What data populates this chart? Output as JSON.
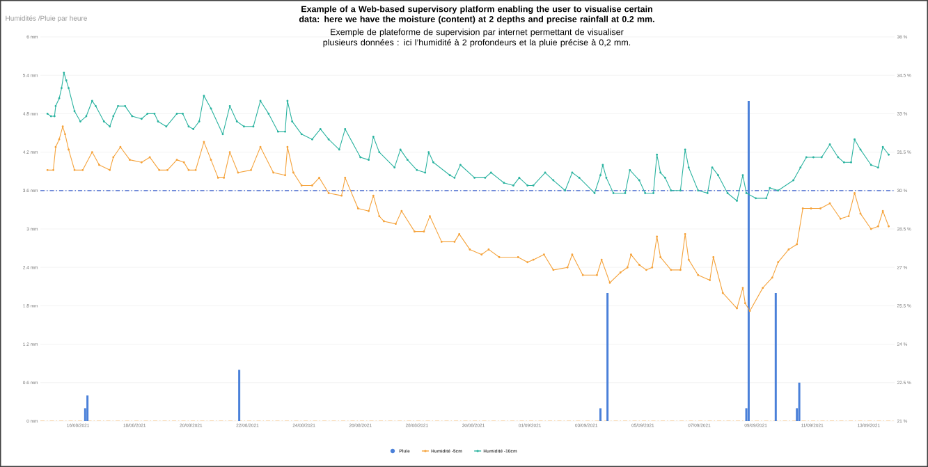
{
  "chart_data": {
    "type": "line",
    "title": "Humidités /Pluie par heure",
    "annotations": [
      "Example of a Web-based supervisory platform enabling the user to visualise certain data: here we have the moisture (content) at 2 depths and precise rainfall at 0.2 mm.",
      "Exemple de plateforme de supervision par internet permettant de visualiser plusieurs données : ici l’humidité à 2 profondeurs et la pluie précise à 0,2 mm."
    ],
    "xlim": [
      "2021-08-14T16:00",
      "2021-09-13T22:00"
    ],
    "xticks": [
      {
        "value": "2021-08-16",
        "label": "16/08/2021"
      },
      {
        "value": "2021-08-18",
        "label": "18/08/2021"
      },
      {
        "value": "2021-08-20",
        "label": "20/08/2021"
      },
      {
        "value": "2021-08-22",
        "label": "22/08/2021"
      },
      {
        "value": "2021-08-24",
        "label": "24/08/2021"
      },
      {
        "value": "2021-08-26",
        "label": "26/08/2021"
      },
      {
        "value": "2021-08-28",
        "label": "28/08/2021"
      },
      {
        "value": "2021-08-30",
        "label": "30/08/2021"
      },
      {
        "value": "2021-09-01",
        "label": "01/09/2021"
      },
      {
        "value": "2021-09-03",
        "label": "03/09/2021"
      },
      {
        "value": "2021-09-05",
        "label": "05/09/2021"
      },
      {
        "value": "2021-09-07",
        "label": "07/09/2021"
      },
      {
        "value": "2021-09-09",
        "label": "09/09/2021"
      },
      {
        "value": "2021-09-11",
        "label": "11/09/2021"
      },
      {
        "value": "2021-09-13",
        "label": "13/09/2021"
      }
    ],
    "ylim": [
      0,
      6
    ],
    "yticks": [
      {
        "value": 0,
        "label": "0 mm"
      },
      {
        "value": 0.6,
        "label": "0.6 mm"
      },
      {
        "value": 1.2,
        "label": "1.2 mm"
      },
      {
        "value": 1.8,
        "label": "1.8 mm"
      },
      {
        "value": 2.4,
        "label": "2.4 mm"
      },
      {
        "value": 3,
        "label": "3 mm"
      },
      {
        "value": 3.6,
        "label": "3.6 mm"
      },
      {
        "value": 4.2,
        "label": "4.2 mm"
      },
      {
        "value": 4.8,
        "label": "4.8 mm"
      },
      {
        "value": 5.4,
        "label": "5.4 mm"
      },
      {
        "value": 6,
        "label": "6 mm"
      }
    ],
    "y2lim": [
      21,
      36
    ],
    "y2ticks": [
      {
        "value": 21,
        "label": "21 %"
      },
      {
        "value": 22.5,
        "label": "22.5 %"
      },
      {
        "value": 24,
        "label": "24 %"
      },
      {
        "value": 25.5,
        "label": "25.5 %"
      },
      {
        "value": 27,
        "label": "27 %"
      },
      {
        "value": 28.5,
        "label": "28.5 %"
      },
      {
        "value": 30,
        "label": "30 %"
      },
      {
        "value": 31.5,
        "label": "31.5 %"
      },
      {
        "value": 33,
        "label": "33 %"
      },
      {
        "value": 34.5,
        "label": "34.5 %"
      },
      {
        "value": 36,
        "label": "36 %"
      }
    ],
    "grid": "y",
    "legend": "bottom",
    "ref_lines": [
      {
        "axis": "y",
        "value": 3.6,
        "color": "#3a5fcd",
        "line_style": "dashdot"
      },
      {
        "axis": "y",
        "value": 0,
        "color": "#f5a33c",
        "line_style": "dashdot"
      }
    ],
    "series": [
      {
        "name": "Pluie",
        "type": "bar",
        "axis": "y",
        "color": "#4a80d9",
        "x": [
          "2021-08-16T06:00",
          "2021-08-16T08:00",
          "2021-08-21T17:00",
          "2021-09-03T12:00",
          "2021-09-03T18:00",
          "2021-09-08T16:00",
          "2021-09-08T18:00",
          "2021-09-09T17:00",
          "2021-09-10T11:00",
          "2021-09-10T13:00"
        ],
        "values": [
          0.2,
          0.4,
          0.8,
          0.2,
          2.0,
          0.2,
          5.0,
          2.0,
          0.2,
          0.6
        ]
      },
      {
        "name": "Humidité -5cm",
        "axis": "y2",
        "color": "#f5a33c",
        "marker": "circle",
        "x": [
          "2021-08-14T22:00",
          "2021-08-15T03:00",
          "2021-08-15T05:00",
          "2021-08-15T08:00",
          "2021-08-15T11:00",
          "2021-08-15T13:00",
          "2021-08-15T16:00",
          "2021-08-15T21:00",
          "2021-08-16T04:00",
          "2021-08-16T12:00",
          "2021-08-16T18:00",
          "2021-08-17T03:00",
          "2021-08-17T06:00",
          "2021-08-17T12:00",
          "2021-08-17T20:00",
          "2021-08-18T06:00",
          "2021-08-18T13:00",
          "2021-08-18T21:00",
          "2021-08-19T04:00",
          "2021-08-19T12:00",
          "2021-08-19T18:00",
          "2021-08-19T22:00",
          "2021-08-20T04:00",
          "2021-08-20T11:00",
          "2021-08-20T17:00",
          "2021-08-20T23:00",
          "2021-08-21T04:00",
          "2021-08-21T09:00",
          "2021-08-21T16:00",
          "2021-08-22T03:00",
          "2021-08-22T11:00",
          "2021-08-22T22:00",
          "2021-08-23T08:00",
          "2021-08-23T10:00",
          "2021-08-23T15:00",
          "2021-08-23T22:00",
          "2021-08-24T07:00",
          "2021-08-24T13:00",
          "2021-08-24T21:00",
          "2021-08-25T08:00",
          "2021-08-25T11:00",
          "2021-08-25T22:00",
          "2021-08-26T07:00",
          "2021-08-26T11:00",
          "2021-08-26T16:00",
          "2021-08-26T20:00",
          "2021-08-27T06:00",
          "2021-08-27T11:00",
          "2021-08-27T22:00",
          "2021-08-28T06:00",
          "2021-08-28T11:00",
          "2021-08-28T21:00",
          "2021-08-29T08:00",
          "2021-08-29T12:00",
          "2021-08-29T21:00",
          "2021-08-30T07:00",
          "2021-08-30T13:00",
          "2021-08-30T22:00",
          "2021-08-31T14:00",
          "2021-08-31T22:00",
          "2021-09-01T03:00",
          "2021-09-01T12:00",
          "2021-09-01T20:00",
          "2021-09-02T08:00",
          "2021-09-02T12:00",
          "2021-09-02T21:00",
          "2021-09-03T09:00",
          "2021-09-03T13:00",
          "2021-09-03T20:00",
          "2021-09-04T05:00",
          "2021-09-04T11:00",
          "2021-09-04T14:00",
          "2021-09-04T21:00",
          "2021-09-05T03:00",
          "2021-09-05T08:00",
          "2021-09-05T12:00",
          "2021-09-05T15:00",
          "2021-09-06T00:00",
          "2021-09-06T08:00",
          "2021-09-06T12:00",
          "2021-09-06T15:00",
          "2021-09-06T23:00",
          "2021-09-07T09:00",
          "2021-09-07T12:00",
          "2021-09-07T20:00",
          "2021-09-08T08:00",
          "2021-09-08T13:00",
          "2021-09-08T15:00",
          "2021-09-08T19:00",
          "2021-09-09T06:00",
          "2021-09-09T14:00",
          "2021-09-09T19:00",
          "2021-09-10T04:00",
          "2021-09-10T11:00",
          "2021-09-10T16:00",
          "2021-09-10T23:00",
          "2021-09-11T07:00",
          "2021-09-11T15:00",
          "2021-09-12T00:00",
          "2021-09-12T07:00",
          "2021-09-12T12:00",
          "2021-09-12T17:00",
          "2021-09-13T02:00",
          "2021-09-13T08:00",
          "2021-09-13T12:00",
          "2021-09-13T17:00"
        ],
        "values": [
          30.8,
          30.8,
          31.7,
          32.0,
          32.5,
          32.2,
          31.6,
          30.8,
          30.8,
          31.5,
          31.0,
          30.8,
          31.3,
          31.7,
          31.2,
          31.1,
          31.3,
          30.8,
          30.8,
          31.2,
          31.1,
          30.8,
          30.8,
          31.9,
          31.2,
          30.5,
          30.5,
          31.5,
          30.7,
          30.8,
          31.7,
          30.7,
          30.6,
          31.7,
          30.7,
          30.2,
          30.2,
          30.5,
          29.9,
          29.8,
          30.5,
          29.3,
          29.2,
          29.8,
          29.0,
          28.8,
          28.7,
          29.2,
          28.4,
          28.4,
          29.0,
          28.0,
          28.0,
          28.3,
          27.7,
          27.5,
          27.7,
          27.4,
          27.4,
          27.2,
          27.3,
          27.5,
          26.9,
          27.0,
          27.5,
          26.7,
          26.7,
          27.3,
          26.4,
          26.8,
          27.0,
          27.5,
          27.1,
          26.9,
          27.0,
          28.2,
          27.4,
          26.9,
          26.9,
          28.3,
          27.3,
          26.7,
          26.5,
          27.4,
          26.0,
          25.4,
          26.2,
          25.6,
          25.3,
          26.2,
          26.6,
          27.2,
          27.7,
          27.9,
          29.3,
          29.3,
          29.3,
          29.5,
          28.9,
          29.0,
          29.9,
          29.1,
          28.5,
          28.6,
          29.2,
          28.6
        ]
      },
      {
        "name": "Humidité -10cm",
        "axis": "y2",
        "color": "#2bb3a0",
        "marker": "circle",
        "x": [
          "2021-08-14T22:00",
          "2021-08-15T01:00",
          "2021-08-15T04:00",
          "2021-08-15T05:00",
          "2021-08-15T08:00",
          "2021-08-15T10:00",
          "2021-08-15T12:00",
          "2021-08-15T14:00",
          "2021-08-15T16:00",
          "2021-08-15T21:00",
          "2021-08-16T02:00",
          "2021-08-16T07:00",
          "2021-08-16T12:00",
          "2021-08-16T15:00",
          "2021-08-16T22:00",
          "2021-08-17T03:00",
          "2021-08-17T06:00",
          "2021-08-17T10:00",
          "2021-08-17T16:00",
          "2021-08-17T22:00",
          "2021-08-18T06:00",
          "2021-08-18T11:00",
          "2021-08-18T17:00",
          "2021-08-18T20:00",
          "2021-08-19T03:00",
          "2021-08-19T12:00",
          "2021-08-19T17:00",
          "2021-08-19T22:00",
          "2021-08-20T02:00",
          "2021-08-20T07:00",
          "2021-08-20T11:00",
          "2021-08-20T17:00",
          "2021-08-21T03:00",
          "2021-08-21T09:00",
          "2021-08-21T15:00",
          "2021-08-21T21:00",
          "2021-08-22T05:00",
          "2021-08-22T11:00",
          "2021-08-22T18:00",
          "2021-08-23T02:00",
          "2021-08-23T08:00",
          "2021-08-23T10:00",
          "2021-08-23T14:00",
          "2021-08-23T22:00",
          "2021-08-24T07:00",
          "2021-08-24T14:00",
          "2021-08-24T21:00",
          "2021-08-25T06:00",
          "2021-08-25T11:00",
          "2021-08-26T00:00",
          "2021-08-26T07:00",
          "2021-08-26T11:00",
          "2021-08-26T16:00",
          "2021-08-27T05:00",
          "2021-08-27T10:00",
          "2021-08-27T16:00",
          "2021-08-28T00:00",
          "2021-08-28T07:00",
          "2021-08-28T10:00",
          "2021-08-28T14:00",
          "2021-08-29T04:00",
          "2021-08-29T08:00",
          "2021-08-29T13:00",
          "2021-08-30T01:00",
          "2021-08-30T10:00",
          "2021-08-30T15:00",
          "2021-08-31T02:00",
          "2021-08-31T10:00",
          "2021-08-31T15:00",
          "2021-08-31T22:00",
          "2021-09-01T03:00",
          "2021-09-01T13:00",
          "2021-09-01T20:00",
          "2021-09-02T06:00",
          "2021-09-02T12:00",
          "2021-09-02T18:00",
          "2021-09-03T07:00",
          "2021-09-03T12:00",
          "2021-09-03T14:00",
          "2021-09-03T17:00",
          "2021-09-03T23:00",
          "2021-09-04T09:00",
          "2021-09-04T13:00",
          "2021-09-04T21:00",
          "2021-09-05T02:00",
          "2021-09-05T09:00",
          "2021-09-05T12:00",
          "2021-09-05T15:00",
          "2021-09-05T19:00",
          "2021-09-06T00:00",
          "2021-09-06T08:00",
          "2021-09-06T12:00",
          "2021-09-06T15:00",
          "2021-09-06T23:00",
          "2021-09-07T07:00",
          "2021-09-07T11:00",
          "2021-09-07T16:00",
          "2021-09-08T00:00",
          "2021-09-08T08:00",
          "2021-09-08T13:00",
          "2021-09-08T16:00",
          "2021-09-09T00:00",
          "2021-09-09T09:00",
          "2021-09-09T12:00",
          "2021-09-09T19:00",
          "2021-09-10T08:00",
          "2021-09-10T14:00",
          "2021-09-10T19:00",
          "2021-09-11T01:00",
          "2021-09-11T08:00",
          "2021-09-11T15:00",
          "2021-09-11T22:00",
          "2021-09-12T03:00",
          "2021-09-12T09:00",
          "2021-09-12T12:00",
          "2021-09-12T17:00",
          "2021-09-13T02:00",
          "2021-09-13T08:00",
          "2021-09-13T12:00",
          "2021-09-13T17:00"
        ],
        "values": [
          33.0,
          32.9,
          32.9,
          33.3,
          33.6,
          34.0,
          34.6,
          34.3,
          34.0,
          33.1,
          32.7,
          32.9,
          33.5,
          33.3,
          32.7,
          32.5,
          32.9,
          33.3,
          33.3,
          32.9,
          32.8,
          33.0,
          33.0,
          32.7,
          32.5,
          33.0,
          33.0,
          32.5,
          32.4,
          32.7,
          33.7,
          33.2,
          32.2,
          33.3,
          32.7,
          32.5,
          32.5,
          33.5,
          33.0,
          32.3,
          32.3,
          33.5,
          32.7,
          32.2,
          32.0,
          32.4,
          32.0,
          31.6,
          32.4,
          31.3,
          31.2,
          32.1,
          31.5,
          30.9,
          31.6,
          31.2,
          30.8,
          30.7,
          31.5,
          31.1,
          30.6,
          30.5,
          31.0,
          30.5,
          30.5,
          30.7,
          30.3,
          30.2,
          30.5,
          30.2,
          30.2,
          30.7,
          30.4,
          30.0,
          30.7,
          30.5,
          29.9,
          30.6,
          31.0,
          30.5,
          29.9,
          29.9,
          30.8,
          30.4,
          29.9,
          29.9,
          31.4,
          30.7,
          30.5,
          30.0,
          30.0,
          31.6,
          30.9,
          30.0,
          29.9,
          30.9,
          30.6,
          29.9,
          29.6,
          30.6,
          29.9,
          29.7,
          29.7,
          30.1,
          30.0,
          30.4,
          30.9,
          31.3,
          31.3,
          31.3,
          31.8,
          31.3,
          31.1,
          31.1,
          32.0,
          31.6,
          31.0,
          30.9,
          31.7,
          31.4
        ]
      }
    ]
  }
}
